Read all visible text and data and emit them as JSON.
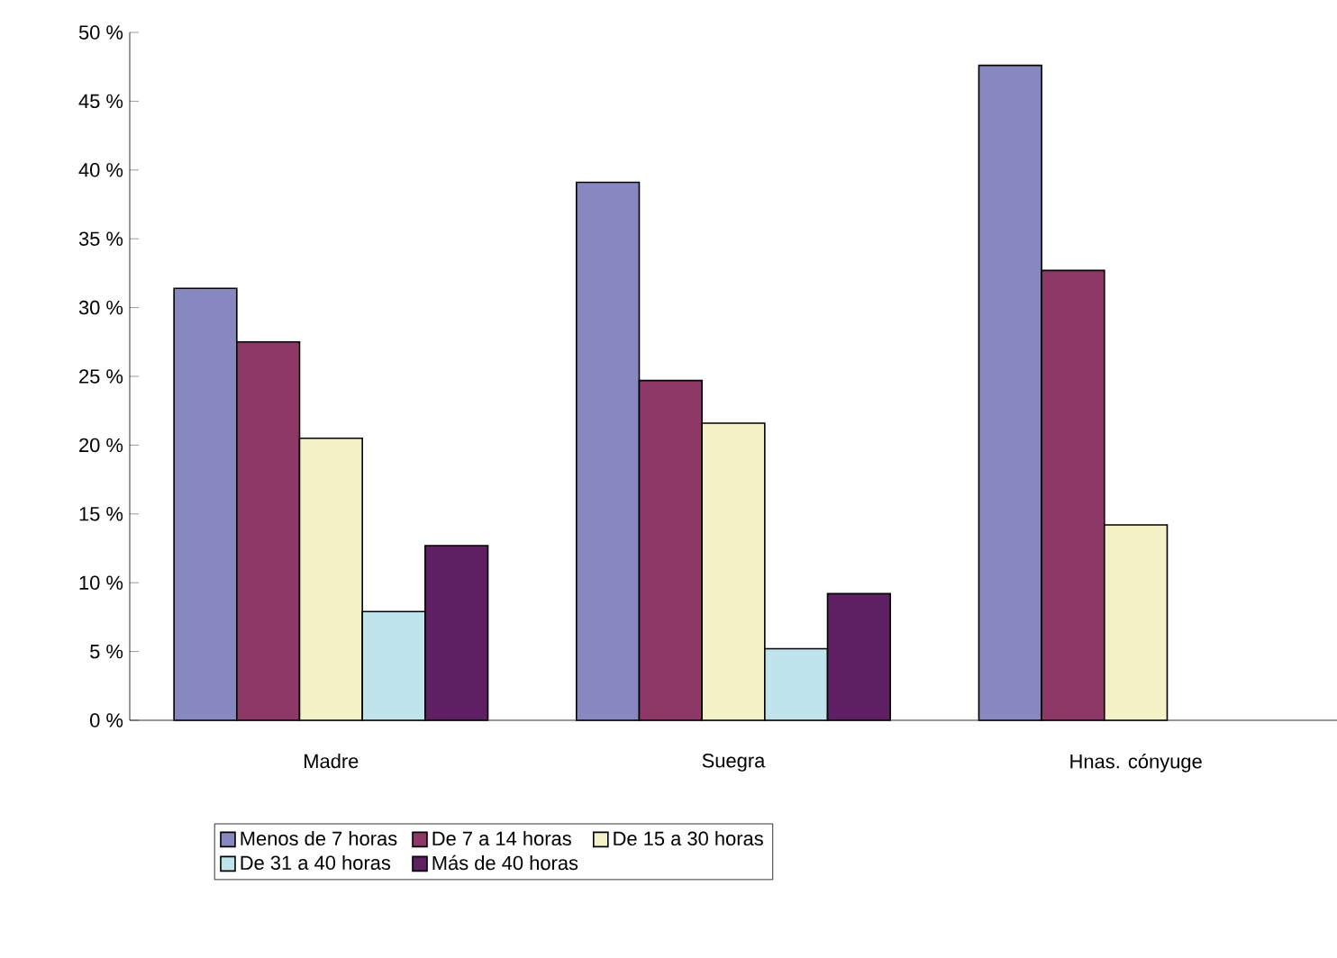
{
  "chart_data": {
    "type": "bar",
    "categories": [
      "Madre",
      "Suegra",
      "Hnas. cónyuge"
    ],
    "series": [
      {
        "name": "Menos de 7 horas",
        "color": "#8888c0",
        "values": [
          31.4,
          39.1,
          47.6
        ]
      },
      {
        "name": "De 7 a 14 horas",
        "color": "#8e3868",
        "values": [
          27.5,
          24.7,
          32.7
        ]
      },
      {
        "name": "De 15 a 30 horas",
        "color": "#f2f2c6",
        "values": [
          20.5,
          21.6,
          14.2
        ]
      },
      {
        "name": "De 31 a 40 horas",
        "color": "#c0e4ec",
        "values": [
          7.9,
          5.2,
          null
        ]
      },
      {
        "name": "Más de 40 horas",
        "color": "#5e2062",
        "values": [
          12.7,
          9.2,
          null
        ]
      }
    ],
    "ylim": [
      0,
      50
    ],
    "yticks": [
      {
        "value": 0,
        "label": "0 %"
      },
      {
        "value": 5,
        "label": "5 %"
      },
      {
        "value": 10,
        "label": "10 %"
      },
      {
        "value": 15,
        "label": "15 %"
      },
      {
        "value": 20,
        "label": "20 %"
      },
      {
        "value": 25,
        "label": "25 %"
      },
      {
        "value": 30,
        "label": "30 %"
      },
      {
        "value": 35,
        "label": "35 %"
      },
      {
        "value": 40,
        "label": "40 %"
      },
      {
        "value": 45,
        "label": "45 %"
      },
      {
        "value": 50,
        "label": "50 %"
      }
    ],
    "grid": false,
    "legend": "bottom"
  }
}
